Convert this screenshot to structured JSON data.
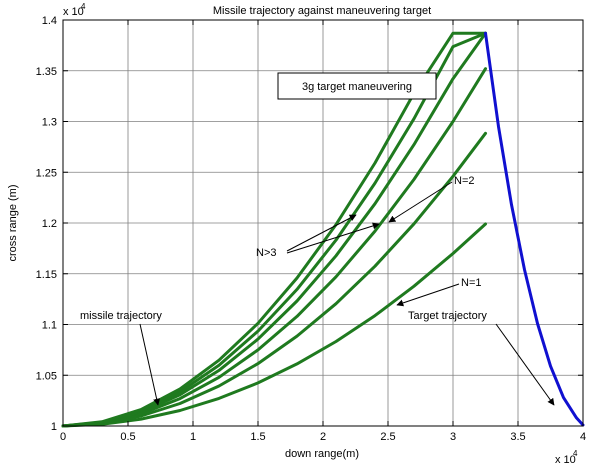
{
  "chart_data": {
    "type": "line",
    "title": "Missile trajectory against maneuvering target",
    "xlabel": "down range(m)",
    "ylabel": "cross range (m)",
    "x_exponent_label": "x 10",
    "x_exponent_power": "4",
    "y_exponent_label": "x 10",
    "y_exponent_power": "4",
    "xlim": [
      0,
      4
    ],
    "ylim": [
      1.0,
      1.4
    ],
    "x_ticks": [
      0,
      0.5,
      1,
      1.5,
      2,
      2.5,
      3,
      3.5,
      4
    ],
    "y_ticks": [
      1,
      1.05,
      1.1,
      1.15,
      1.2,
      1.25,
      1.3,
      1.35,
      1.4
    ],
    "x_tick_labels": [
      "0",
      "0.5",
      "1",
      "1.5",
      "2",
      "2.5",
      "3",
      "3.5",
      "4"
    ],
    "y_tick_labels": [
      "1",
      "1.05",
      "1.1",
      "1.15",
      "1.2",
      "1.25",
      "1.3",
      "1.35",
      "1.4"
    ],
    "grid": true,
    "series": [
      {
        "color": "#1f7a1f",
        "x": [
          0,
          0.3,
          0.6,
          0.9,
          1.2,
          1.5,
          1.8,
          2.1,
          2.4,
          2.7,
          3.0,
          3.25
        ],
        "y": [
          1.0,
          1.0017,
          1.0068,
          1.0153,
          1.0272,
          1.0425,
          1.0612,
          1.0833,
          1.1088,
          1.1377,
          1.17,
          1.199
        ]
      },
      {
        "color": "#1f7a1f",
        "x": [
          0,
          0.3,
          0.6,
          0.9,
          1.2,
          1.5,
          1.8,
          2.1,
          2.4,
          2.7,
          3.0,
          3.25
        ],
        "y": [
          1.0,
          1.0025,
          1.0099,
          1.0222,
          1.0394,
          1.0615,
          1.0886,
          1.1205,
          1.1574,
          1.1992,
          1.246,
          1.2884
        ]
      },
      {
        "color": "#1f7a1f",
        "x": [
          0,
          0.3,
          0.6,
          0.9,
          1.2,
          1.5,
          1.8,
          2.1,
          2.4,
          2.7,
          3.0,
          3.25
        ],
        "y": [
          1.0,
          1.003,
          1.012,
          1.027,
          1.048,
          1.075,
          1.108,
          1.147,
          1.192,
          1.243,
          1.3,
          1.352
        ]
      },
      {
        "color": "#1f7a1f",
        "x": [
          0,
          0.3,
          0.6,
          0.9,
          1.2,
          1.5,
          1.8,
          2.1,
          2.4,
          2.7,
          3.0,
          3.25
        ],
        "y": [
          1.0,
          1.0034,
          1.0137,
          1.0308,
          1.0548,
          1.0856,
          1.1232,
          1.1677,
          1.219,
          1.2772,
          1.3422,
          1.387
        ]
      },
      {
        "color": "#1f7a1f",
        "x": [
          0,
          0.3,
          0.6,
          0.9,
          1.2,
          1.5,
          1.8,
          2.1,
          2.4,
          2.7,
          3.0,
          3.25
        ],
        "y": [
          1.0,
          1.0037,
          1.0149,
          1.0336,
          1.0598,
          1.0935,
          1.1346,
          1.1832,
          1.2393,
          1.3028,
          1.3738,
          1.387
        ]
      },
      {
        "color": "#1f7a1f",
        "x": [
          0,
          0.3,
          0.6,
          0.9,
          1.2,
          1.5,
          1.8,
          2.1,
          2.4,
          2.7,
          3.0,
          3.25
        ],
        "y": [
          1.0,
          1.0041,
          1.0162,
          1.0365,
          1.0648,
          1.1012,
          1.1458,
          1.1984,
          1.2591,
          1.3279,
          1.387,
          1.387
        ]
      },
      {
        "color": "#1010d0",
        "x": [
          3.25,
          3.35,
          3.45,
          3.55,
          3.65,
          3.75,
          3.85,
          3.95,
          4.0
        ],
        "y": [
          1.387,
          1.295,
          1.218,
          1.154,
          1.101,
          1.059,
          1.028,
          1.008,
          1.001
        ]
      }
    ],
    "annotations": [
      {
        "text": "3g  target maneuvering",
        "x": 2.85,
        "y": 1.358,
        "boxed": true
      },
      {
        "text": "N=2",
        "x": 2.97,
        "y": 1.243
      },
      {
        "text": "N>3",
        "x": 1.85,
        "y": 1.186
      },
      {
        "text": "N=1",
        "x": 3.05,
        "y": 1.174
      },
      {
        "text": "missile trajectory",
        "x": 1.0,
        "y": 1.109
      },
      {
        "text": "Target trajectory",
        "x": 3.5,
        "y": 1.109
      }
    ]
  }
}
